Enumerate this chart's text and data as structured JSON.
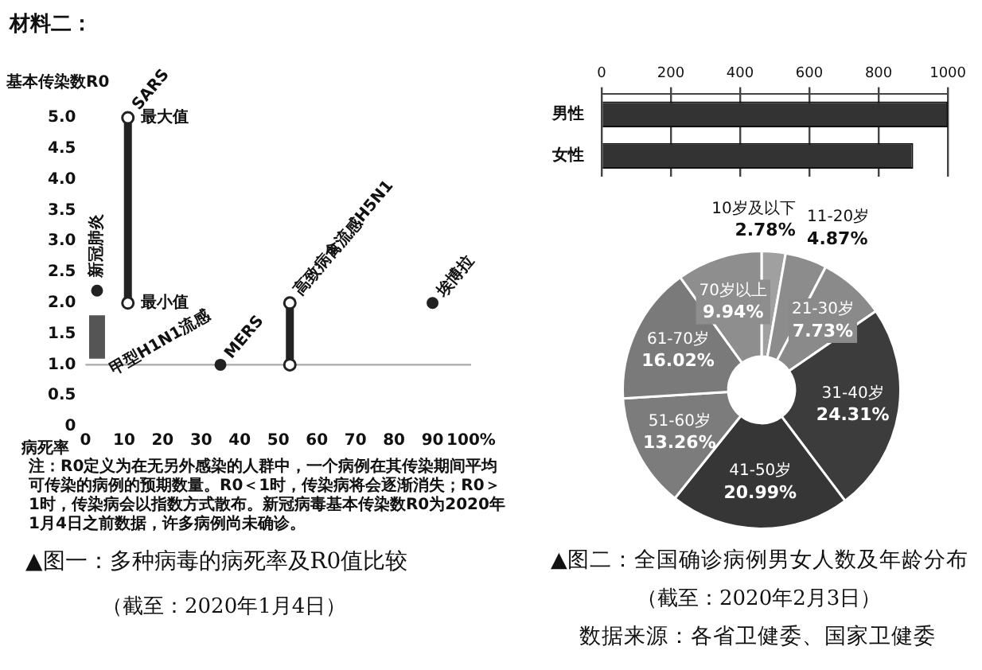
{
  "chart_data": [
    {
      "type": "scatter",
      "title": "▲图一：多种病毒的病死率及R0值比较",
      "subtitle": "（截至：2020年1月4日）",
      "xlabel": "病死率",
      "ylabel": "基本传染数R0",
      "annotations": [
        "材料二：",
        "注：R0定义为在无另外感染的人群中，一个病例在其传染期间平均可传染的病例的预期数量。R0＜1时，传染病将会逐渐消失；R0＞1时，传染病会以指数方式散布。新冠病毒基本传染数R0为2020年1月4日之前数据，许多病例尚未确诊。",
        {
          "text": "最大值",
          "x": 11,
          "y": 5
        },
        {
          "text": "最小值",
          "x": 11,
          "y": 2
        }
      ],
      "series": [
        {
          "name": "甲型H1N1流感",
          "type": "line",
          "marker": "none",
          "color": "#555555",
          "x": [
            3,
            3
          ],
          "values": [
            1.1,
            1.8
          ]
        },
        {
          "name": "SARS",
          "type": "line",
          "color": "#222222",
          "x": [
            11,
            11
          ],
          "values": [
            2,
            5
          ]
        },
        {
          "name": "新冠肺炎",
          "type": "scatter",
          "color": "#222222",
          "x": [
            3
          ],
          "values": [
            2.2
          ]
        },
        {
          "name": "MERS",
          "type": "scatter",
          "color": "#222222",
          "x": [
            35
          ],
          "values": [
            1
          ]
        },
        {
          "name": "高致病禽流感H5N1",
          "type": "line",
          "color": "#222222",
          "x": [
            53,
            53
          ],
          "values": [
            1,
            2
          ]
        },
        {
          "name": "埃博拉",
          "type": "scatter",
          "color": "#222222",
          "x": [
            90
          ],
          "values": [
            2
          ]
        }
      ],
      "ref_lines": [
        {
          "axis": "y",
          "value": 1,
          "color": "#aaaaaa"
        }
      ],
      "marker": "circle",
      "grid": false,
      "xlim": [
        0,
        100
      ],
      "xticks": [
        0,
        10,
        20,
        30,
        40,
        50,
        60,
        70,
        80,
        90,
        {
          "value": 100,
          "label": "100%"
        }
      ],
      "ylim": [
        0,
        5
      ],
      "yticks": [
        0,
        0.5,
        {
          "value": 1,
          "label": "1.0"
        },
        1.5,
        {
          "value": 2,
          "label": "2.0"
        },
        2.5,
        {
          "value": 3,
          "label": "3.0"
        },
        3.5,
        {
          "value": 4,
          "label": "4.0"
        },
        4.5,
        {
          "value": 5,
          "label": "5.0"
        }
      ]
    },
    {
      "type": "bar",
      "orientation": "horizontal",
      "categories": [
        "男性",
        "女性"
      ],
      "values": [
        1000,
        900
      ],
      "color": "#333333",
      "grid": "x",
      "xlim": [
        0,
        1000
      ],
      "xticks": [
        0,
        200,
        400,
        600,
        800,
        1000
      ]
    },
    {
      "type": "donut",
      "title": "▲图二：全国确诊病例男女人数及年龄分布",
      "subtitle": "（截至：2020年2月3日）",
      "annotations": [
        "数据来源：各省卫健委、国家卫健委"
      ],
      "categories": [
        "10岁及以下",
        "11-20岁",
        "21-30岁",
        "31-40岁",
        "41-50岁",
        "51-60岁",
        "61-70岁",
        "70岁以上"
      ],
      "values": [
        2.78,
        4.87,
        7.73,
        24.31,
        20.99,
        13.26,
        16.02,
        9.94
      ],
      "value_labels": [
        "2.78%",
        "4.87%",
        "7.73%",
        "24.31%",
        "20.99%",
        "13.26%",
        "16.02%",
        "9.94%"
      ],
      "colors": [
        "#a0a0a0",
        "#8c8c8c",
        "#8a8a8a",
        "#3c3c3c",
        "#363636",
        "#7c7c7c",
        "#7a7a7a",
        "#8e8e8e"
      ]
    }
  ]
}
